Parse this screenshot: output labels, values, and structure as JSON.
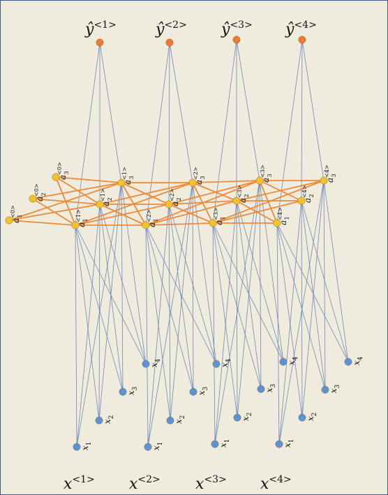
{
  "diagram": {
    "type": "unrolled-rnn",
    "colors": {
      "background": "#efecdd",
      "border": "#3f5a8a",
      "input_node": "#5b93d6",
      "hidden_node": "#f2c12e",
      "output_node": "#ec7a34",
      "input_edge": "#7186b5",
      "recurrent_edge": "#ec8a3a"
    },
    "time_labels": [
      {
        "base": "x",
        "sup": "<1>"
      },
      {
        "base": "x",
        "sup": "<2>"
      },
      {
        "base": "x",
        "sup": "<3>"
      },
      {
        "base": "x",
        "sup": "<4>"
      }
    ],
    "output_labels": [
      {
        "base": "ŷ",
        "sup": "<1>"
      },
      {
        "base": "ŷ",
        "sup": "<2>"
      },
      {
        "base": "ŷ",
        "sup": "<3>"
      },
      {
        "base": "ŷ",
        "sup": "<4>"
      }
    ],
    "input_node_labels": [
      {
        "base": "x",
        "sub": "1"
      },
      {
        "base": "x",
        "sub": "2"
      },
      {
        "base": "x",
        "sub": "3"
      },
      {
        "base": "x",
        "sub": "4"
      }
    ],
    "initial_state_labels": [
      {
        "base": "a",
        "sub": "1",
        "sup": "<0>"
      },
      {
        "base": "a",
        "sub": "2",
        "sup": "<0>"
      },
      {
        "base": "a",
        "sub": "3",
        "sup": "<0>"
      }
    ],
    "hidden_node_labels": [
      [
        {
          "base": "a",
          "sub": "1",
          "sup": "<1>"
        },
        {
          "base": "a",
          "sub": "2",
          "sup": "<1>"
        },
        {
          "base": "a",
          "sub": "3",
          "sup": "<1>"
        }
      ],
      [
        {
          "base": "a",
          "sub": "1",
          "sup": "<2>"
        },
        {
          "base": "a",
          "sub": "2",
          "sup": "<2>"
        },
        {
          "base": "a",
          "sub": "3",
          "sup": "<2>"
        }
      ],
      [
        {
          "base": "a",
          "sub": "1",
          "sup": "<3>"
        },
        {
          "base": "a",
          "sub": "2",
          "sup": "<3>"
        },
        {
          "base": "a",
          "sub": "3",
          "sup": "<3>"
        }
      ],
      [
        {
          "base": "a",
          "sub": "1",
          "sup": "<4>"
        },
        {
          "base": "a",
          "sub": "2",
          "sup": "<4>"
        },
        {
          "base": "a",
          "sub": "3",
          "sup": "<4>"
        }
      ]
    ]
  }
}
